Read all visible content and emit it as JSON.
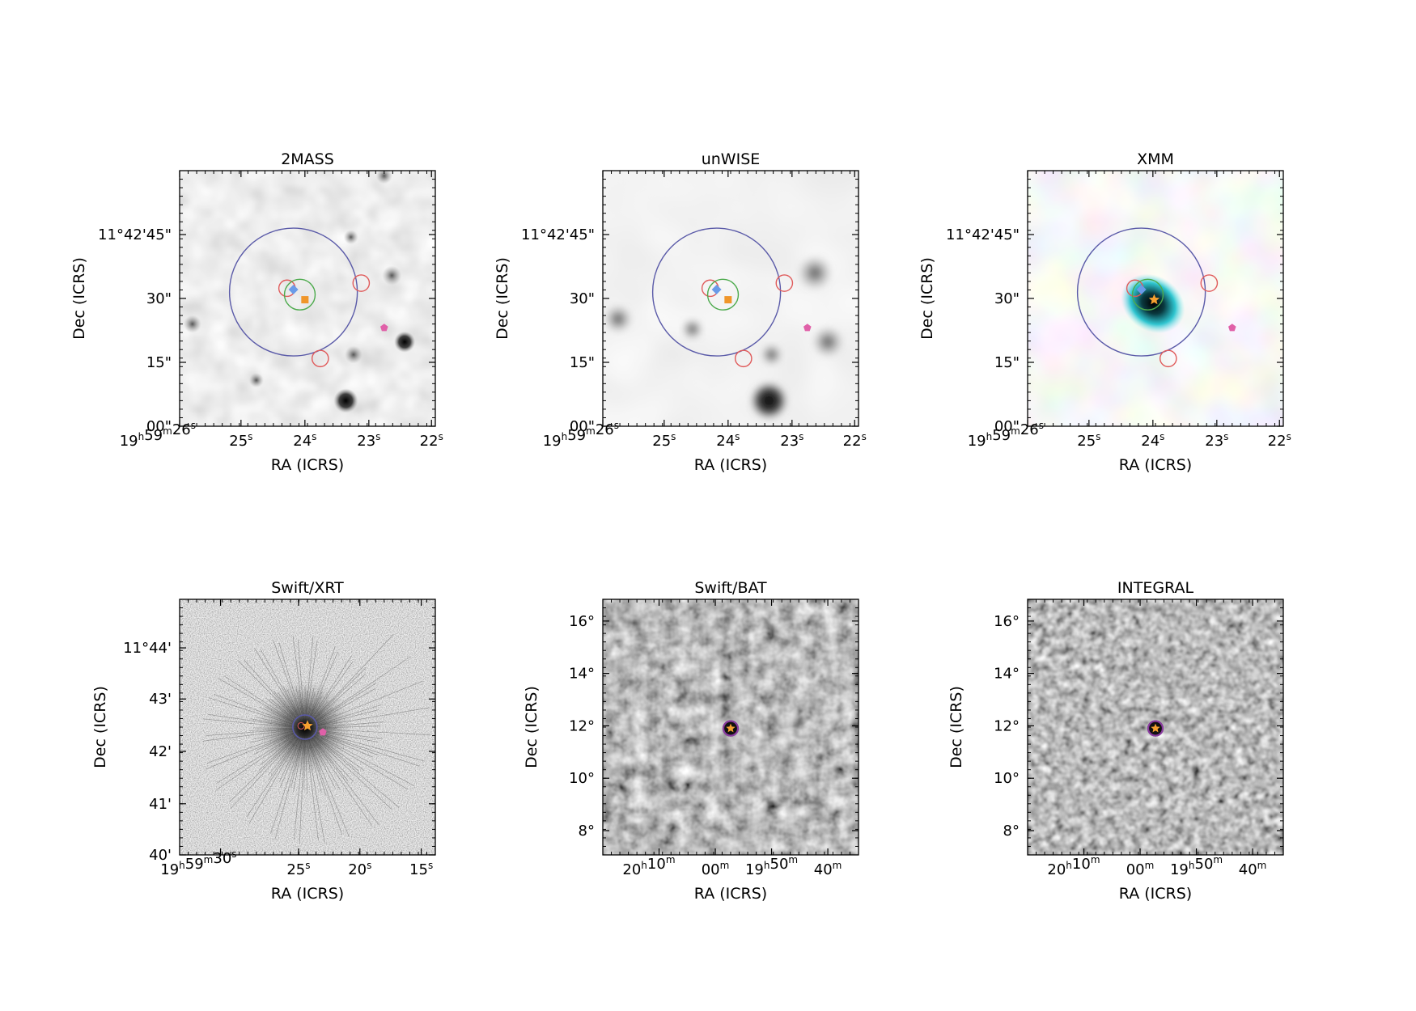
{
  "figure": {
    "panels": [
      {
        "id": "2mass",
        "title": "2MASS",
        "image_style": "gray-smooth",
        "xlabel": "RA (ICRS)",
        "ylabel": "Dec (ICRS)",
        "ra_ticks": [
          "19h59m26s",
          "25s",
          "24s",
          "23s",
          "22s"
        ],
        "dec_ticks": [
          "00\"",
          "15\"",
          "30\"",
          "11°42'45\""
        ]
      },
      {
        "id": "unwise",
        "title": "unWISE",
        "image_style": "gray-blur",
        "xlabel": "RA (ICRS)",
        "ylabel": "Dec (ICRS)",
        "ra_ticks": [
          "19h59m26s",
          "25s",
          "24s",
          "23s",
          "22s"
        ],
        "dec_ticks": [
          "00\"",
          "15\"",
          "30\"",
          "11°42'45\""
        ]
      },
      {
        "id": "xmm",
        "title": "XMM",
        "image_style": "pastel-rgb",
        "xlabel": "RA (ICRS)",
        "ylabel": "Dec (ICRS)",
        "ra_ticks": [
          "19h59m26s",
          "25s",
          "24s",
          "23s",
          "22s"
        ],
        "dec_ticks": [
          "00\"",
          "15\"",
          "30\"",
          "11°42'45\""
        ]
      },
      {
        "id": "swift-xrt",
        "title": "Swift/XRT",
        "image_style": "psf-spikes",
        "xlabel": "RA (ICRS)",
        "ylabel": "Dec (ICRS)",
        "ra_ticks": [
          "19h59m30s",
          "25s",
          "20s",
          "15s"
        ],
        "dec_ticks": [
          "40'",
          "41'",
          "42'",
          "43'",
          "11°44'"
        ]
      },
      {
        "id": "swift-bat",
        "title": "Swift/BAT",
        "image_style": "noise-coarse",
        "xlabel": "RA (ICRS)",
        "ylabel": "Dec (ICRS)",
        "ra_ticks": [
          "20h10m",
          "00m",
          "19h50m",
          "40m"
        ],
        "dec_ticks": [
          "8°",
          "10°",
          "12°",
          "14°",
          "16°"
        ]
      },
      {
        "id": "integral",
        "title": "INTEGRAL",
        "image_style": "noise-fine",
        "xlabel": "RA (ICRS)",
        "ylabel": "Dec (ICRS)",
        "ra_ticks": [
          "20h10m",
          "00m",
          "19h50m",
          "40m"
        ],
        "dec_ticks": [
          "8°",
          "10°",
          "12°",
          "14°",
          "16°"
        ]
      }
    ],
    "marker_colors": {
      "large_circle": "#5a5aa8",
      "red_circle": "#e05a5a",
      "green_circle": "#4caa4c",
      "blue_diamond": "#6a9be8",
      "orange_square": "#f0962a",
      "orange_star": "#f5a030",
      "pink_pentagon": "#e060a8",
      "purple_ring": "#8a3aa0"
    }
  }
}
